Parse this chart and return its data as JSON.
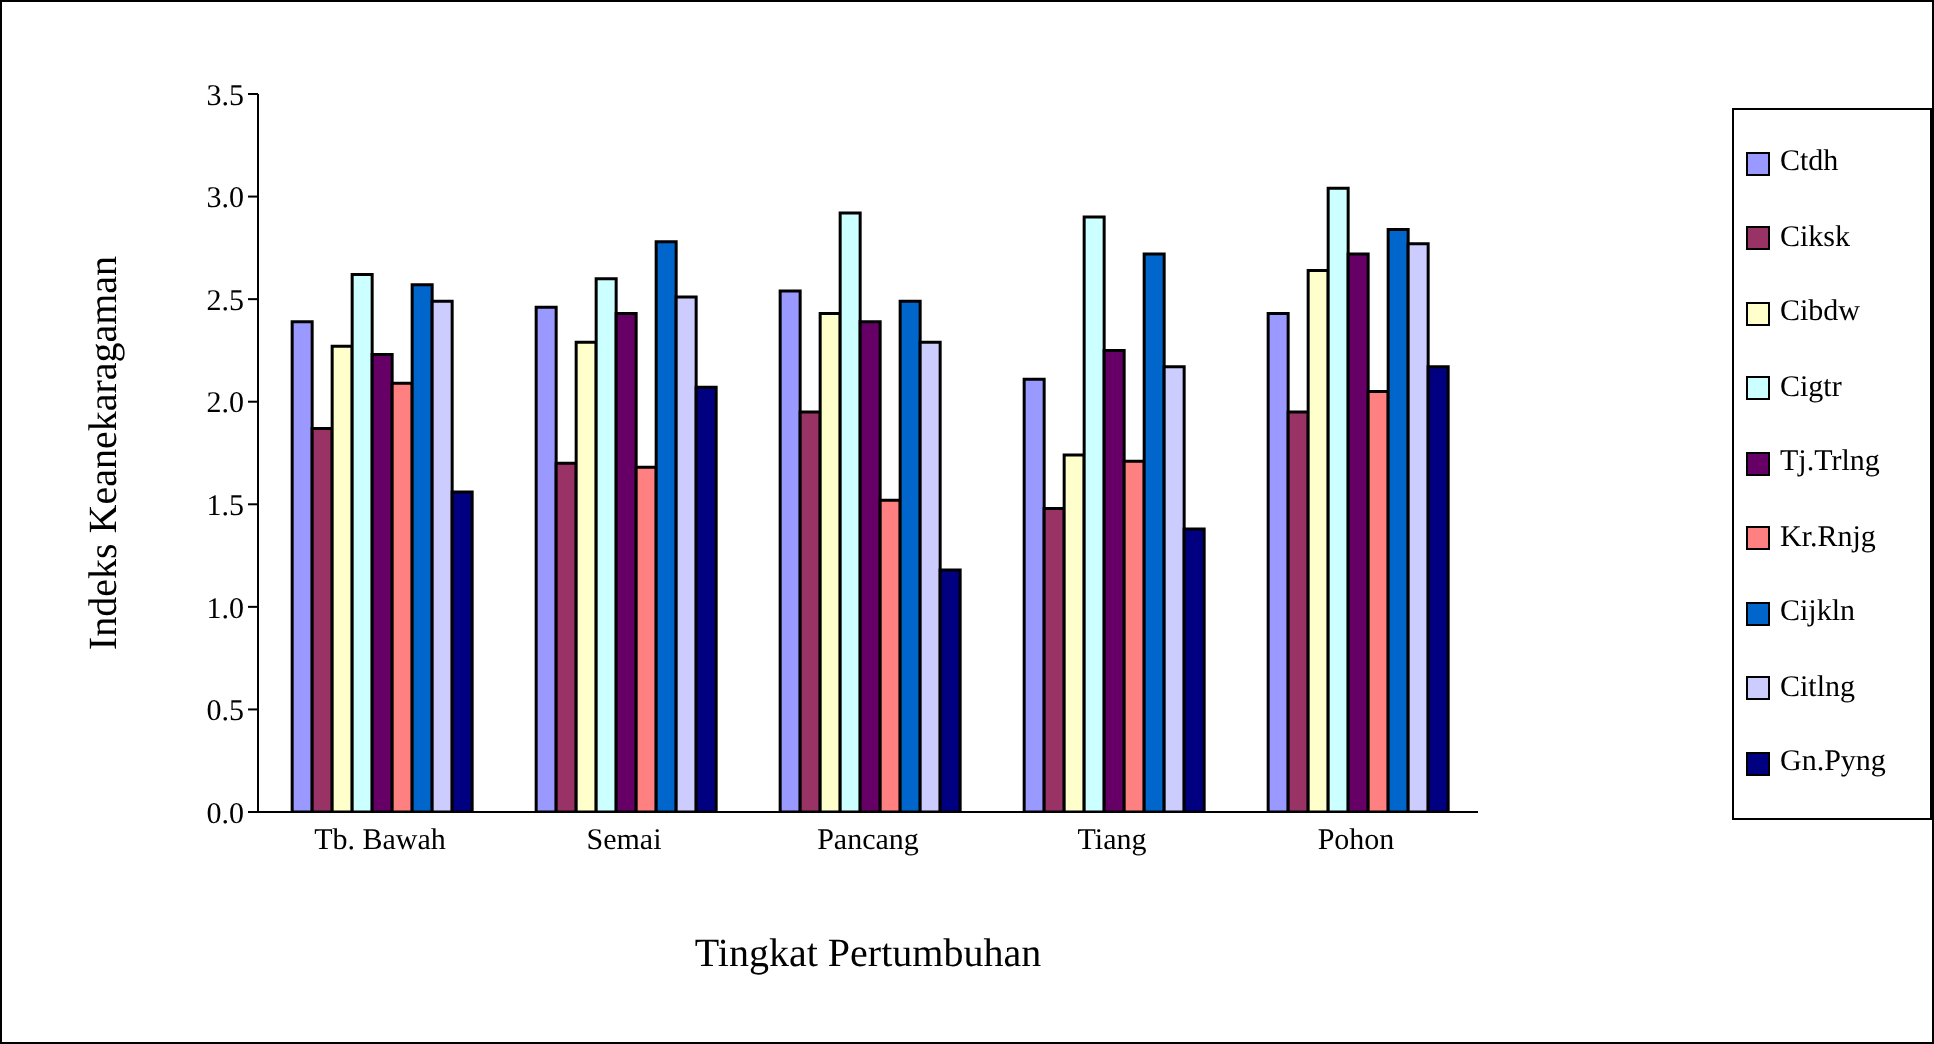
{
  "chart_data": {
    "type": "bar",
    "xlabel": "Tingkat Pertumbuhan",
    "ylabel": "Indeks Keanekaragaman",
    "categories": [
      "Tb. Bawah",
      "Semai",
      "Pancang",
      "Tiang",
      "Pohon"
    ],
    "series": [
      {
        "name": "Ctdh",
        "color": "#9999ff",
        "values": [
          2.39,
          2.46,
          2.54,
          2.11,
          2.43
        ]
      },
      {
        "name": "Ciksk",
        "color": "#993366",
        "values": [
          1.87,
          1.7,
          1.95,
          1.48,
          1.95
        ]
      },
      {
        "name": "Cibdw",
        "color": "#ffffcc",
        "values": [
          2.27,
          2.29,
          2.43,
          1.74,
          2.64
        ]
      },
      {
        "name": "Cigtr",
        "color": "#ccffff",
        "values": [
          2.62,
          2.6,
          2.92,
          2.9,
          3.04
        ]
      },
      {
        "name": "Tj.Trlng",
        "color": "#660066",
        "values": [
          2.23,
          2.43,
          2.39,
          2.25,
          2.72
        ]
      },
      {
        "name": "Kr.Rnjg",
        "color": "#ff8080",
        "values": [
          2.09,
          1.68,
          1.52,
          1.71,
          2.05
        ]
      },
      {
        "name": "Cijkln",
        "color": "#0066cc",
        "values": [
          2.57,
          2.78,
          2.49,
          2.72,
          2.84
        ]
      },
      {
        "name": "Citlng",
        "color": "#ccccff",
        "values": [
          2.49,
          2.51,
          2.29,
          2.17,
          2.77
        ]
      },
      {
        "name": "Gn.Pyng",
        "color": "#000080",
        "values": [
          1.56,
          2.07,
          1.18,
          1.38,
          2.17
        ]
      }
    ],
    "ylim": [
      0,
      3.5
    ],
    "yticks": [
      {
        "value": 0,
        "label": "0.0"
      },
      {
        "value": 0.5,
        "label": "0.5"
      },
      {
        "value": 1,
        "label": "1.0"
      },
      {
        "value": 1.5,
        "label": "1.5"
      },
      {
        "value": 2,
        "label": "2.0"
      },
      {
        "value": 2.5,
        "label": "2.5"
      },
      {
        "value": 3,
        "label": "3.0"
      },
      {
        "value": 3.5,
        "label": "3.5"
      }
    ],
    "grid": false,
    "legend": "right"
  }
}
